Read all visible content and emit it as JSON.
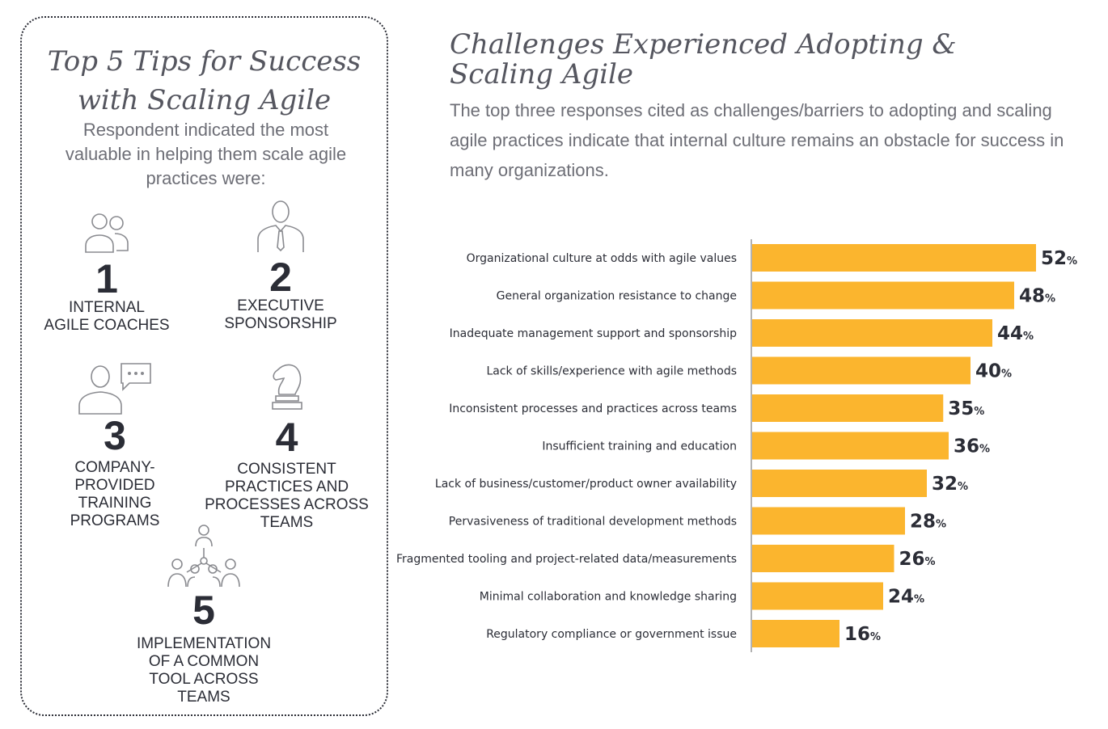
{
  "tips": {
    "title_line1": "Top 5 Tips for Success",
    "title_line2": "with Scaling Agile",
    "subtitle": "Respondent indicated the most valuable in helping them scale agile practices were:",
    "items": [
      {
        "number": "1",
        "text": "Internal\nagile coaches",
        "icon": "coaches-icon"
      },
      {
        "number": "2",
        "text": "Executive\nsponsorship",
        "icon": "executive-icon"
      },
      {
        "number": "3",
        "text": "Company-\nprovided\ntraining\nprograms",
        "icon": "training-icon"
      },
      {
        "number": "4",
        "text": "Consistent\npractices and\nprocesses across\nteams",
        "icon": "chess-knight-icon"
      },
      {
        "number": "5",
        "text": "Implementation\nof a common\ntool across\nteams",
        "icon": "team-network-icon"
      }
    ]
  },
  "chart_title": "Challenges Experienced Adopting &\nScaling Agile",
  "chart_subtitle": "The top three responses cited as challenges/barriers to adopting and scaling agile practices indicate that internal culture remains an obstacle for success in many organizations.",
  "colors": {
    "bar": "#fbb52e",
    "axis": "#999999",
    "text": "#2b2d36"
  },
  "chart_data": {
    "type": "bar",
    "orientation": "horizontal",
    "categories": [
      "Organizational culture at odds with agile values",
      "General organization resistance to change",
      "Inadequate management support and sponsorship",
      "Lack of skills/experience with agile methods",
      "Inconsistent processes and practices across teams",
      "Insufficient training and education",
      "Lack of business/customer/product owner availability",
      "Pervasiveness of traditional development methods",
      "Fragmented tooling and project-related data/measurements",
      "Minimal collaboration and knowledge sharing",
      "Regulatory compliance or government issue"
    ],
    "values": [
      52,
      48,
      44,
      40,
      35,
      36,
      32,
      28,
      26,
      24,
      16
    ],
    "unit": "%",
    "xlim": [
      0,
      52
    ],
    "grid": false,
    "legend": "none"
  }
}
